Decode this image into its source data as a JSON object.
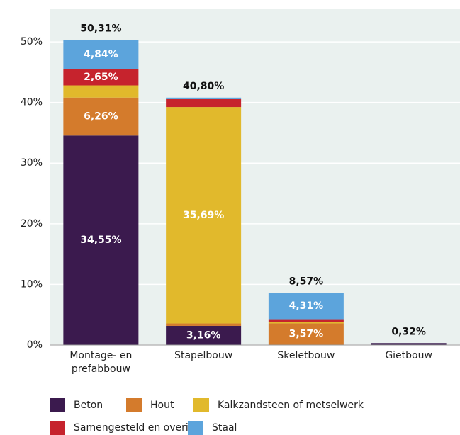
{
  "chart_data": {
    "type": "stacked-bar",
    "categories": [
      "Montage- en prefabbouw",
      "Stapelbouw",
      "Skeletbouw",
      "Gietbouw"
    ],
    "series": [
      {
        "name": "Beton",
        "color": "#3b1a4e",
        "values": [
          34.55,
          3.16,
          0,
          0.32
        ],
        "value_labels": [
          "34,55%",
          "3,16%",
          null,
          null
        ]
      },
      {
        "name": "Hout",
        "color": "#d47b2c",
        "values": [
          6.26,
          0.4,
          3.57,
          0
        ],
        "value_labels": [
          "6,26%",
          null,
          "3,57%",
          null
        ]
      },
      {
        "name": "Kalkzandsteen of metselwerk",
        "color": "#e1b92c",
        "values": [
          2.01,
          35.69,
          0.25,
          0
        ],
        "value_labels": [
          null,
          "35,69%",
          null,
          null
        ]
      },
      {
        "name": "Samengesteld en overig",
        "color": "#c6232d",
        "values": [
          2.65,
          1.3,
          0.44,
          0
        ],
        "value_labels": [
          "2,65%",
          null,
          null,
          null
        ]
      },
      {
        "name": "Staal",
        "color": "#5ca4dc",
        "values": [
          4.84,
          0.25,
          4.31,
          0
        ],
        "value_labels": [
          "4,84%",
          null,
          "4,31%",
          null
        ]
      }
    ],
    "totals": [
      50.31,
      40.8,
      8.57,
      0.32
    ],
    "total_labels": [
      "50,31%",
      "40,80%",
      "8,57%",
      "0,32%"
    ],
    "ylim": [
      0,
      55.5
    ],
    "yticks": [
      {
        "value": 0,
        "label": "0%"
      },
      {
        "value": 10,
        "label": "10%"
      },
      {
        "value": 20,
        "label": "20%"
      },
      {
        "value": 30,
        "label": "30%"
      },
      {
        "value": 40,
        "label": "40%"
      },
      {
        "value": 50,
        "label": "50%"
      }
    ],
    "grid": true
  }
}
